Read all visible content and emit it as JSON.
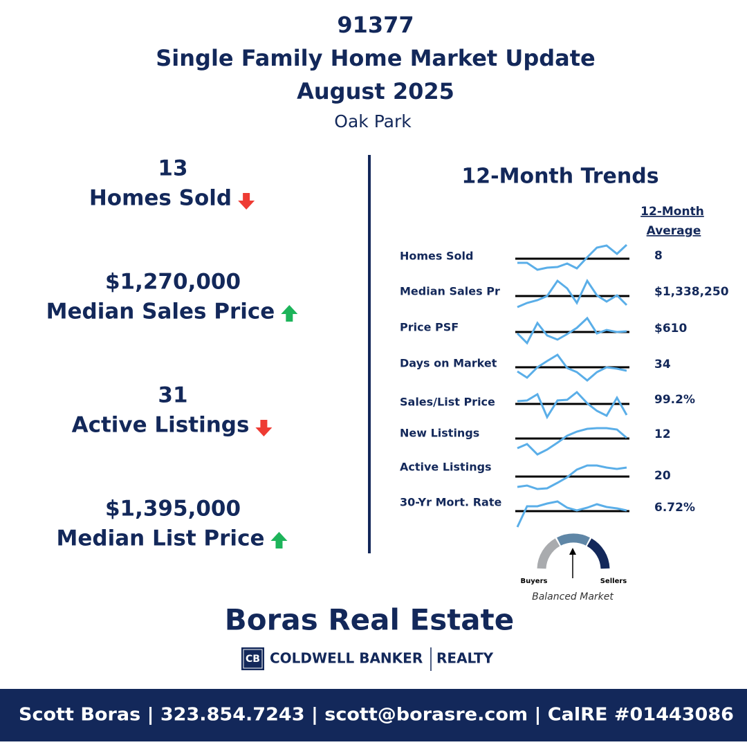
{
  "header": {
    "zip": "91377",
    "title": "Single Family Home Market Update",
    "period": "August 2025",
    "area": "Oak Park"
  },
  "highlights": [
    {
      "value": "13",
      "label": "Homes Sold",
      "trend": "down"
    },
    {
      "value": "$1,270,000",
      "label": "Median Sales Price",
      "trend": "up"
    },
    {
      "value": "31",
      "label": "Active Listings",
      "trend": "down"
    },
    {
      "value": "$1,395,000",
      "label": "Median List Price",
      "trend": "up"
    }
  ],
  "trends": {
    "title": "12-Month Trends",
    "average_header": [
      "12-Month",
      "Average"
    ],
    "rows": [
      {
        "label": "Homes Sold",
        "average": "8"
      },
      {
        "label": "Median Sales Pr",
        "average": "$1,338,250"
      },
      {
        "label": "Price PSF",
        "average": "$610"
      },
      {
        "label": "Days on Market",
        "average": "34"
      },
      {
        "label": "Sales/List Price",
        "average": "99.2%"
      },
      {
        "label": "New Listings",
        "average": "12"
      },
      {
        "label": "Active Listings",
        "average": "20"
      },
      {
        "label": "30-Yr Mort. Rate",
        "average": "6.72%"
      }
    ]
  },
  "gauge": {
    "left": "Buyers",
    "right": "Sellers",
    "caption": "Balanced Market"
  },
  "brand": {
    "name": "Boras Real Estate",
    "logo_mark": "CB",
    "logo_text": "COLDWELL BANKER",
    "logo_suffix": "REALTY"
  },
  "footer": "Scott Boras | 323.854.7243 | scott@borasre.com | CalRE #01443086"
}
